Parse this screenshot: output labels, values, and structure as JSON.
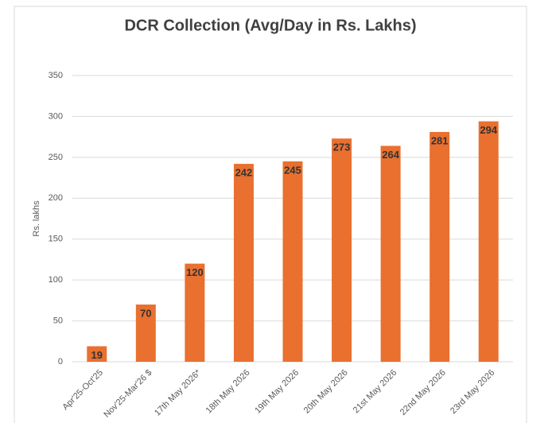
{
  "chart_data": {
    "type": "bar",
    "title": "DCR Collection (Avg/Day in Rs. Lakhs)",
    "y_label": "Rs. lakhs",
    "categories": [
      "Apr'25-Oct'25",
      "Nov'25-Mar'26 $",
      "17th May 2026*",
      "18th May 2026",
      "19th May 2026",
      "20th May 2026",
      "21st May 2026",
      "22nd May 2026",
      "23rd May 2026"
    ],
    "values": [
      19,
      70,
      120,
      242,
      245,
      273,
      264,
      281,
      294
    ],
    "color": "#e9702f",
    "ylim": [
      0,
      350
    ],
    "yticks": [
      0,
      50,
      100,
      150,
      200,
      250,
      300,
      350
    ],
    "grid": true,
    "data_labels": true
  }
}
